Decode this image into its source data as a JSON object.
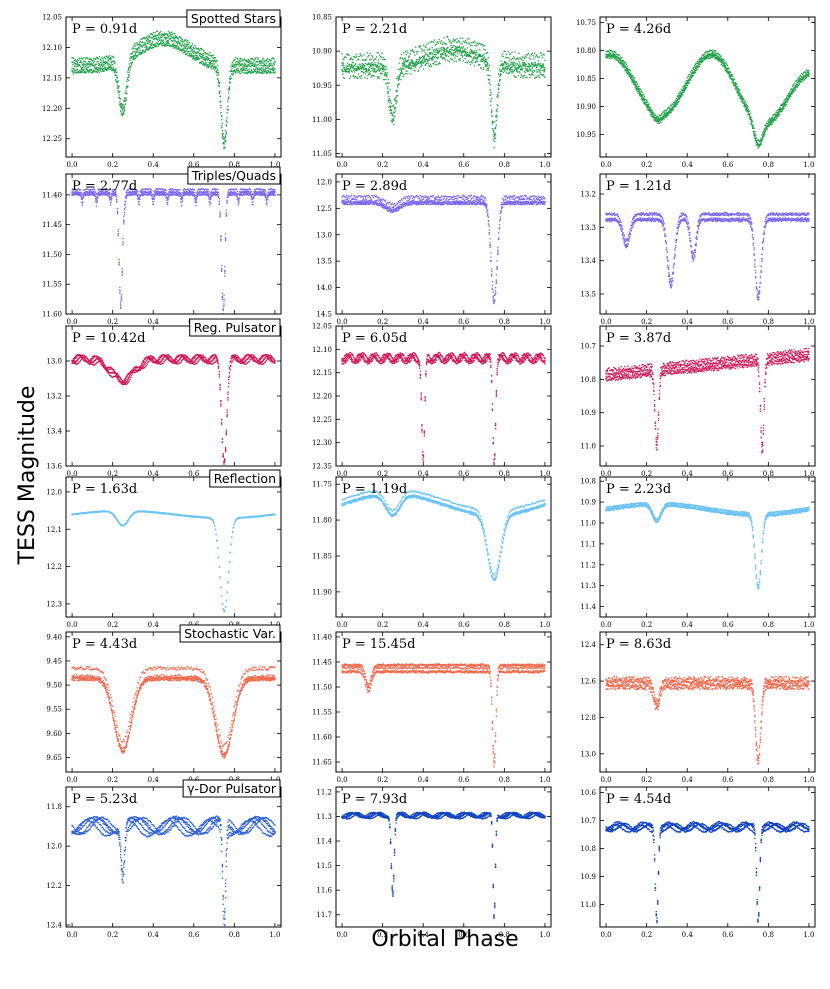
{
  "figure": {
    "ylabel": "TESS Magnitude",
    "xlabel": "Orbital Phase"
  },
  "chart_data": [
    {
      "type": "scatter",
      "title": "Spotted Stars",
      "period_label": "P = 0.91d",
      "color": "#22a24a",
      "ylim": [
        12.05,
        12.28
      ],
      "inverted_y": true,
      "yticks": [
        "12.05",
        "12.10",
        "12.15",
        "12.20",
        "12.25"
      ],
      "ytick_values": [
        12.05,
        12.1,
        12.15,
        12.2,
        12.25
      ],
      "xlim": [
        -0.03,
        1.03
      ],
      "xticks": [
        "0.0",
        "0.2",
        "0.4",
        "0.6",
        "0.8",
        "1.0"
      ],
      "x_values": [
        0.0,
        0.2,
        0.4,
        0.6,
        0.8,
        1.0
      ],
      "curve": {
        "base": 12.135,
        "hump_phase": 0.45,
        "hump_depth": -0.045,
        "eclipses": [
          {
            "phase": 0.25,
            "depth": 0.085,
            "width": 0.028
          },
          {
            "phase": 0.75,
            "depth": 0.13,
            "width": 0.022
          }
        ],
        "spread": 0.018
      }
    },
    {
      "type": "scatter",
      "title": "",
      "period_label": "P = 2.21d",
      "color": "#22a24a",
      "ylim": [
        10.85,
        11.055
      ],
      "inverted_y": true,
      "yticks": [
        "10.85",
        "10.90",
        "10.95",
        "11.00",
        "11.05"
      ],
      "ytick_values": [
        10.85,
        10.9,
        10.95,
        11.0,
        11.05
      ],
      "xlim": [
        -0.03,
        1.03
      ],
      "xticks": [
        "0.0",
        "0.2",
        "0.4",
        "0.6",
        "0.8",
        "1.0"
      ],
      "x_values": [
        0.0,
        0.2,
        0.4,
        0.6,
        0.8,
        1.0
      ],
      "curve": {
        "base": 10.93,
        "hump_phase": 0.55,
        "hump_depth": -0.025,
        "eclipses": [
          {
            "phase": 0.25,
            "depth": 0.075,
            "width": 0.025
          },
          {
            "phase": 0.75,
            "depth": 0.11,
            "width": 0.02
          }
        ],
        "spread": 0.03
      }
    },
    {
      "type": "scatter",
      "title": "",
      "period_label": "P = 4.26d",
      "color": "#22a24a",
      "ylim": [
        10.74,
        10.99
      ],
      "inverted_y": true,
      "yticks": [
        "10.75",
        "10.80",
        "10.85",
        "10.90",
        "10.95"
      ],
      "ytick_values": [
        10.75,
        10.8,
        10.85,
        10.9,
        10.95
      ],
      "xlim": [
        -0.03,
        1.03
      ],
      "xticks": [
        "0.0",
        "0.2",
        "0.4",
        "0.6",
        "0.8",
        "1.0"
      ],
      "x_values": [
        0.0,
        0.2,
        0.4,
        0.6,
        0.8,
        1.0
      ],
      "curve": {
        "base": 10.86,
        "wave_amp": 0.06,
        "eclipses": [
          {
            "phase": 0.25,
            "depth": 0.01,
            "width": 0.03
          },
          {
            "phase": 0.75,
            "depth": 0.04,
            "width": 0.03
          }
        ],
        "spread": 0.01
      }
    },
    {
      "type": "scatter",
      "title": "Triples/Quads",
      "period_label": "P = 2.77d",
      "color": "#7b68ee",
      "ylim": [
        11.365,
        11.6
      ],
      "inverted_y": true,
      "yticks": [
        "11.40",
        "11.45",
        "11.50",
        "11.55",
        "11.60"
      ],
      "ytick_values": [
        11.4,
        11.45,
        11.5,
        11.55,
        11.6
      ],
      "xlim": [
        -0.03,
        1.03
      ],
      "xticks": [
        "0.0",
        "0.2",
        "0.4",
        "0.6",
        "0.8",
        "1.0"
      ],
      "x_values": [
        0.0,
        0.2,
        0.4,
        0.6,
        0.8,
        1.0
      ],
      "curve": {
        "base": 11.395,
        "eclipses": [
          {
            "phase": 0.24,
            "depth": 0.19,
            "width": 0.012
          },
          {
            "phase": 0.745,
            "depth": 0.19,
            "width": 0.012
          }
        ],
        "spread": 0.006,
        "extra_dips": 0.018
      }
    },
    {
      "type": "scatter",
      "title": "",
      "period_label": "P = 2.89d",
      "color": "#7b68ee",
      "ylim": [
        11.85,
        14.5
      ],
      "inverted_y": true,
      "yticks": [
        "12.0",
        "12.5",
        "13.0",
        "13.5",
        "14.0",
        "14.5"
      ],
      "ytick_values": [
        12.0,
        12.5,
        13.0,
        13.5,
        14.0,
        14.5
      ],
      "xlim": [
        -0.03,
        1.03
      ],
      "xticks": [
        "0.0",
        "0.2",
        "0.4",
        "0.6",
        "0.8",
        "1.0"
      ],
      "x_values": [
        0.0,
        0.2,
        0.4,
        0.6,
        0.8,
        1.0
      ],
      "curve": {
        "base": 12.4,
        "eclipses": [
          {
            "phase": 0.25,
            "depth": 0.15,
            "width": 0.05
          },
          {
            "phase": 0.75,
            "depth": 1.9,
            "width": 0.022
          }
        ],
        "spread": 0.15
      }
    },
    {
      "type": "scatter",
      "title": "",
      "period_label": "P = 1.21d",
      "color": "#7b68ee",
      "ylim": [
        13.14,
        13.56
      ],
      "inverted_y": true,
      "yticks": [
        "13.2",
        "13.3",
        "13.4",
        "13.5"
      ],
      "ytick_values": [
        13.2,
        13.3,
        13.4,
        13.5
      ],
      "xlim": [
        -0.03,
        1.03
      ],
      "xticks": [
        "0.0",
        "0.2",
        "0.4",
        "0.6",
        "0.8",
        "1.0"
      ],
      "x_values": [
        0.0,
        0.2,
        0.4,
        0.6,
        0.8,
        1.0
      ],
      "curve": {
        "base": 13.27,
        "eclipses": [
          {
            "phase": 0.1,
            "depth": 0.08,
            "width": 0.025
          },
          {
            "phase": 0.32,
            "depth": 0.2,
            "width": 0.025
          },
          {
            "phase": 0.43,
            "depth": 0.12,
            "width": 0.02
          },
          {
            "phase": 0.75,
            "depth": 0.24,
            "width": 0.022
          }
        ],
        "spread": 0.015
      }
    },
    {
      "type": "scatter",
      "title": "Reg. Pulsator",
      "period_label": "P = 10.42d",
      "color": "#d11a5a",
      "ylim": [
        12.8,
        13.6
      ],
      "inverted_y": true,
      "yticks": [
        "13.0",
        "13.2",
        "13.4",
        "13.6"
      ],
      "ytick_values": [
        13.0,
        13.2,
        13.4,
        13.6
      ],
      "xlim": [
        -0.03,
        1.03
      ],
      "xticks": [
        "0.0",
        "0.2",
        "0.4",
        "0.6",
        "0.8",
        "1.0"
      ],
      "x_values": [
        0.0,
        0.2,
        0.4,
        0.6,
        0.8,
        1.0
      ],
      "curve": {
        "base": 12.99,
        "pulse_amp": 0.02,
        "pulse_freq": 12,
        "eclipses": [
          {
            "phase": 0.25,
            "depth": 0.12,
            "width": 0.08
          },
          {
            "phase": 0.75,
            "depth": 0.58,
            "width": 0.018
          }
        ],
        "spread": 0.01
      }
    },
    {
      "type": "scatter",
      "title": "",
      "period_label": "P = 6.05d",
      "color": "#d11a5a",
      "ylim": [
        12.05,
        12.35
      ],
      "inverted_y": true,
      "yticks": [
        "12.05",
        "12.10",
        "12.15",
        "12.20",
        "12.25",
        "12.30",
        "12.35"
      ],
      "ytick_values": [
        12.05,
        12.1,
        12.15,
        12.2,
        12.25,
        12.3,
        12.35
      ],
      "xlim": [
        -0.03,
        1.03
      ],
      "xticks": [
        "0.0",
        "0.2",
        "0.4",
        "0.6",
        "0.8",
        "1.0"
      ],
      "x_values": [
        0.0,
        0.2,
        0.4,
        0.6,
        0.8,
        1.0
      ],
      "curve": {
        "base": 12.12,
        "pulse_amp": 0.008,
        "pulse_freq": 16,
        "eclipses": [
          {
            "phase": 0.4,
            "depth": 0.22,
            "width": 0.01
          },
          {
            "phase": 0.75,
            "depth": 0.22,
            "width": 0.01
          }
        ],
        "spread": 0.006
      }
    },
    {
      "type": "scatter",
      "title": "",
      "period_label": "P = 3.87d",
      "color": "#d11a5a",
      "ylim": [
        10.64,
        11.06
      ],
      "inverted_y": true,
      "yticks": [
        "10.7",
        "10.8",
        "10.9",
        "11.0"
      ],
      "ytick_values": [
        10.7,
        10.8,
        10.9,
        11.0
      ],
      "xlim": [
        -0.03,
        1.03
      ],
      "xticks": [
        "0.0",
        "0.2",
        "0.4",
        "0.6",
        "0.8",
        "1.0"
      ],
      "x_values": [
        0.0,
        0.2,
        0.4,
        0.6,
        0.8,
        1.0
      ],
      "curve": {
        "base": 10.78,
        "slope": -0.06,
        "eclipses": [
          {
            "phase": 0.25,
            "depth": 0.23,
            "width": 0.012
          },
          {
            "phase": 0.77,
            "depth": 0.27,
            "width": 0.012
          }
        ],
        "spread": 0.03
      }
    },
    {
      "type": "scatter",
      "title": "Reflection",
      "period_label": "P = 1.63d",
      "color": "#6cc3f5",
      "ylim": [
        11.96,
        12.335
      ],
      "inverted_y": true,
      "yticks": [
        "12.0",
        "12.1",
        "12.2",
        "12.3"
      ],
      "ytick_values": [
        12.0,
        12.1,
        12.2,
        12.3
      ],
      "xlim": [
        -0.03,
        1.03
      ],
      "xticks": [
        "0.0",
        "0.2",
        "0.4",
        "0.6",
        "0.8",
        "1.0"
      ],
      "x_values": [
        0.0,
        0.2,
        0.4,
        0.6,
        0.8,
        1.0
      ],
      "curve": {
        "base": 12.07,
        "reflection": 0.04,
        "eclipses": [
          {
            "phase": 0.25,
            "depth": 0.04,
            "width": 0.04
          },
          {
            "phase": 0.75,
            "depth": 0.25,
            "width": 0.03
          }
        ],
        "spread": 0.003
      }
    },
    {
      "type": "scatter",
      "title": "",
      "period_label": "P = 1.19d",
      "color": "#6cc3f5",
      "ylim": [
        11.74,
        11.935
      ],
      "inverted_y": true,
      "yticks": [
        "11.75",
        "11.80",
        "11.85",
        "11.90"
      ],
      "ytick_values": [
        11.75,
        11.8,
        11.85,
        11.9
      ],
      "xlim": [
        -0.03,
        1.03
      ],
      "xticks": [
        "0.0",
        "0.2",
        "0.4",
        "0.6",
        "0.8",
        "1.0"
      ],
      "x_values": [
        0.0,
        0.2,
        0.4,
        0.6,
        0.8,
        1.0
      ],
      "curve": {
        "base": 11.79,
        "reflection": 0.06,
        "eclipses": [
          {
            "phase": 0.25,
            "depth": 0.03,
            "width": 0.05
          },
          {
            "phase": 0.75,
            "depth": 0.09,
            "width": 0.045
          }
        ],
        "spread": 0.006
      }
    },
    {
      "type": "scatter",
      "title": "",
      "period_label": "P = 2.23d",
      "color": "#6cc3f5",
      "ylim": [
        10.78,
        11.45
      ],
      "inverted_y": true,
      "yticks": [
        "10.8",
        "10.9",
        "11.0",
        "11.1",
        "11.2",
        "11.3",
        "11.4"
      ],
      "ytick_values": [
        10.8,
        10.9,
        11.0,
        11.1,
        11.2,
        11.3,
        11.4
      ],
      "xlim": [
        -0.03,
        1.03
      ],
      "xticks": [
        "0.0",
        "0.2",
        "0.4",
        "0.6",
        "0.8",
        "1.0"
      ],
      "x_values": [
        0.0,
        0.2,
        0.4,
        0.6,
        0.8,
        1.0
      ],
      "curve": {
        "base": 10.96,
        "reflection": 0.1,
        "eclipses": [
          {
            "phase": 0.25,
            "depth": 0.08,
            "width": 0.03
          },
          {
            "phase": 0.75,
            "depth": 0.35,
            "width": 0.022
          }
        ],
        "spread": 0.015
      }
    },
    {
      "type": "scatter",
      "title": "Stochastic Var.",
      "period_label": "P = 4.43d",
      "color": "#f4664a",
      "ylim": [
        9.39,
        9.68
      ],
      "inverted_y": true,
      "yticks": [
        "9.40",
        "9.45",
        "9.50",
        "9.55",
        "9.60",
        "9.65"
      ],
      "ytick_values": [
        9.4,
        9.45,
        9.5,
        9.55,
        9.6,
        9.65
      ],
      "xlim": [
        -0.03,
        1.03
      ],
      "xticks": [
        "0.0",
        "0.2",
        "0.4",
        "0.6",
        "0.8",
        "1.0"
      ],
      "x_values": [
        0.0,
        0.2,
        0.4,
        0.6,
        0.8,
        1.0
      ],
      "curve": {
        "base": 9.475,
        "eclipses": [
          {
            "phase": 0.25,
            "depth": 0.15,
            "width": 0.06
          },
          {
            "phase": 0.75,
            "depth": 0.16,
            "width": 0.06
          }
        ],
        "spread": 0.018
      }
    },
    {
      "type": "scatter",
      "title": "",
      "period_label": "P = 15.45d",
      "color": "#f4664a",
      "ylim": [
        11.39,
        11.67
      ],
      "inverted_y": true,
      "yticks": [
        "11.40",
        "11.45",
        "11.50",
        "11.55",
        "11.60",
        "11.65"
      ],
      "ytick_values": [
        11.4,
        11.45,
        11.5,
        11.55,
        11.6,
        11.65
      ],
      "xlim": [
        -0.03,
        1.03
      ],
      "xticks": [
        "0.0",
        "0.2",
        "0.4",
        "0.6",
        "0.8",
        "1.0"
      ],
      "x_values": [
        0.0,
        0.2,
        0.4,
        0.6,
        0.8,
        1.0
      ],
      "curve": {
        "base": 11.465,
        "eclipses": [
          {
            "phase": 0.13,
            "depth": 0.04,
            "width": 0.02
          },
          {
            "phase": 0.75,
            "depth": 0.19,
            "width": 0.012
          }
        ],
        "spread": 0.012
      }
    },
    {
      "type": "scatter",
      "title": "",
      "period_label": "P = 8.63d",
      "color": "#f4664a",
      "ylim": [
        12.33,
        13.1
      ],
      "inverted_y": true,
      "yticks": [
        "12.4",
        "12.6",
        "12.8",
        "13.0"
      ],
      "ytick_values": [
        12.4,
        12.6,
        12.8,
        13.0
      ],
      "xlim": [
        -0.03,
        1.03
      ],
      "xticks": [
        "0.0",
        "0.2",
        "0.4",
        "0.6",
        "0.8",
        "1.0"
      ],
      "x_values": [
        0.0,
        0.2,
        0.4,
        0.6,
        0.8,
        1.0
      ],
      "curve": {
        "base": 12.6,
        "eclipses": [
          {
            "phase": 0.25,
            "depth": 0.12,
            "width": 0.02
          },
          {
            "phase": 0.75,
            "depth": 0.42,
            "width": 0.018
          }
        ],
        "spread": 0.07
      }
    },
    {
      "type": "scatter",
      "title": "γ-Dor Pulsator",
      "period_label": "P = 5.23d",
      "color": "#2f62d6",
      "ylim": [
        11.7,
        12.41
      ],
      "inverted_y": true,
      "yticks": [
        "11.8",
        "12.0",
        "12.2",
        "12.4"
      ],
      "ytick_values": [
        11.8,
        12.0,
        12.2,
        12.4
      ],
      "xlim": [
        -0.03,
        1.03
      ],
      "xticks": [
        "0.0",
        "0.2",
        "0.4",
        "0.6",
        "0.8",
        "1.0"
      ],
      "x_values": [
        0.0,
        0.2,
        0.4,
        0.6,
        0.8,
        1.0
      ],
      "curve": {
        "base": 11.9,
        "pulse_amp": 0.04,
        "pulse_freq": 5,
        "eclipses": [
          {
            "phase": 0.25,
            "depth": 0.25,
            "width": 0.012
          },
          {
            "phase": 0.75,
            "depth": 0.5,
            "width": 0.01
          }
        ],
        "spread": 0.02
      }
    },
    {
      "type": "scatter",
      "title": "",
      "period_label": "P = 7.93d",
      "color": "#1144c2",
      "ylim": [
        11.18,
        11.75
      ],
      "inverted_y": true,
      "yticks": [
        "11.2",
        "11.3",
        "11.4",
        "11.5",
        "11.6",
        "11.7"
      ],
      "ytick_values": [
        11.2,
        11.3,
        11.4,
        11.5,
        11.6,
        11.7
      ],
      "xlim": [
        -0.03,
        1.03
      ],
      "xticks": [
        "0.0",
        "0.2",
        "0.4",
        "0.6",
        "0.8",
        "1.0"
      ],
      "x_values": [
        0.0,
        0.2,
        0.4,
        0.6,
        0.8,
        1.0
      ],
      "curve": {
        "base": 11.3,
        "pulse_amp": 0.01,
        "pulse_freq": 9,
        "eclipses": [
          {
            "phase": 0.25,
            "depth": 0.32,
            "width": 0.01
          },
          {
            "phase": 0.75,
            "depth": 0.42,
            "width": 0.008
          }
        ],
        "spread": 0.008
      }
    },
    {
      "type": "scatter",
      "title": "",
      "period_label": "P = 4.54d",
      "color": "#1144c2",
      "ylim": [
        10.58,
        11.08
      ],
      "inverted_y": true,
      "yticks": [
        "10.6",
        "10.7",
        "10.8",
        "10.9",
        "11.0"
      ],
      "ytick_values": [
        10.6,
        10.7,
        10.8,
        10.9,
        11.0
      ],
      "xlim": [
        -0.03,
        1.03
      ],
      "xticks": [
        "0.0",
        "0.2",
        "0.4",
        "0.6",
        "0.8",
        "1.0"
      ],
      "x_values": [
        0.0,
        0.2,
        0.4,
        0.6,
        0.8,
        1.0
      ],
      "curve": {
        "base": 10.72,
        "pulse_amp": 0.012,
        "pulse_freq": 8,
        "eclipses": [
          {
            "phase": 0.25,
            "depth": 0.33,
            "width": 0.01
          },
          {
            "phase": 0.75,
            "depth": 0.33,
            "width": 0.01
          }
        ],
        "spread": 0.012
      }
    }
  ]
}
